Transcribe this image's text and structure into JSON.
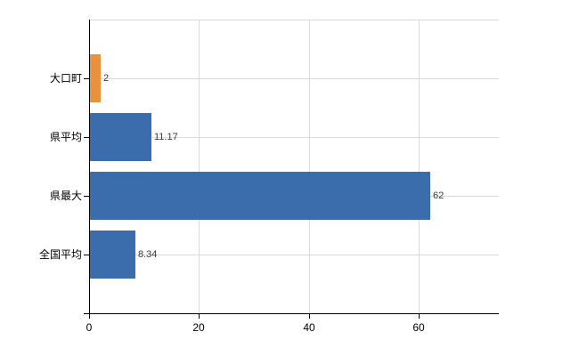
{
  "chart_data": {
    "type": "bar",
    "orientation": "horizontal",
    "title": "",
    "xlabel": "",
    "ylabel": "",
    "categories": [
      "大口町",
      "県平均",
      "県最大",
      "全国平均"
    ],
    "values": [
      2,
      11.17,
      62,
      8.34
    ],
    "value_labels": [
      "2",
      "11.17",
      "62",
      "8.34"
    ],
    "bar_colors": [
      "#e8933b",
      "#3b6dad",
      "#3b6dad",
      "#3b6dad"
    ],
    "xlim": [
      0,
      74.6
    ],
    "xticks": [
      0,
      20,
      40,
      60
    ],
    "xtick_labels": [
      "0",
      "20",
      "40",
      "60"
    ],
    "grid": true,
    "legend": false,
    "colors": {
      "highlight_orange": "#e8933b",
      "bar_blue": "#3b6dad",
      "gridline": "#d9d9d9",
      "axis": "#000000",
      "value_label_text": "#3a3a3a",
      "background": "#ffffff"
    }
  }
}
